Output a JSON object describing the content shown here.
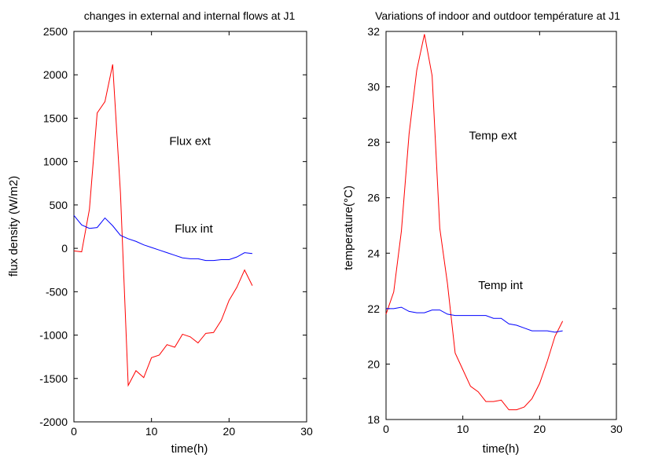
{
  "chart_data": [
    {
      "type": "line",
      "title": "changes in external and internal flows at J1",
      "xlabel": "time(h)",
      "ylabel": "flux density (W/m2)",
      "xlim": [
        0,
        30
      ],
      "ylim": [
        -2000,
        2500
      ],
      "xticks": [
        0,
        10,
        20,
        30
      ],
      "yticks": [
        -2000,
        -1500,
        -1000,
        -500,
        0,
        500,
        1000,
        1500,
        2000,
        2500
      ],
      "grid": false,
      "legend": "none",
      "series": [
        {
          "color": "#ff0000",
          "x": [
            0,
            1,
            2,
            3,
            4,
            5,
            6,
            7,
            8,
            9,
            10,
            11,
            12,
            13,
            14,
            15,
            16,
            17,
            18,
            19,
            20,
            21,
            22,
            23
          ],
          "values": [
            -30,
            -40,
            450,
            1560,
            1690,
            2120,
            640,
            -1580,
            -1410,
            -1490,
            -1260,
            -1230,
            -1110,
            -1140,
            -990,
            -1020,
            -1090,
            -980,
            -970,
            -830,
            -600,
            -450,
            -250,
            -430
          ]
        },
        {
          "color": "#0000ff",
          "x": [
            0,
            1,
            2,
            3,
            4,
            5,
            6,
            7,
            8,
            9,
            10,
            11,
            12,
            13,
            14,
            15,
            16,
            17,
            18,
            19,
            20,
            21,
            22,
            23
          ],
          "values": [
            380,
            270,
            230,
            240,
            350,
            260,
            150,
            110,
            80,
            40,
            10,
            -20,
            -50,
            -80,
            -110,
            -120,
            -120,
            -140,
            -140,
            -130,
            -130,
            -100,
            -50,
            -60
          ]
        }
      ],
      "annotations": [
        {
          "text": "Flux ext",
          "x": 12.3,
          "y": 1190
        },
        {
          "text": "Flux int",
          "x": 13.0,
          "y": 180
        }
      ]
    },
    {
      "type": "line",
      "title": "Variations of indoor and outdoor température at J1",
      "xlabel": "time(h)",
      "ylabel": "temperature(°C)",
      "xlim": [
        0,
        30
      ],
      "ylim": [
        18,
        32
      ],
      "xticks": [
        0,
        10,
        20,
        30
      ],
      "yticks": [
        18,
        20,
        22,
        24,
        26,
        28,
        30,
        32
      ],
      "grid": false,
      "legend": "none",
      "series": [
        {
          "color": "#ff0000",
          "x": [
            0,
            1,
            2,
            3,
            4,
            5,
            6,
            7,
            8,
            9,
            10,
            11,
            12,
            13,
            14,
            15,
            16,
            17,
            18,
            19,
            20,
            21,
            22,
            23
          ],
          "values": [
            21.8,
            22.6,
            24.8,
            28.3,
            30.6,
            31.9,
            30.4,
            24.9,
            22.9,
            20.4,
            19.8,
            19.2,
            19.0,
            18.65,
            18.65,
            18.7,
            18.35,
            18.35,
            18.45,
            18.75,
            19.3,
            20.1,
            21.0,
            21.55
          ]
        },
        {
          "color": "#0000ff",
          "x": [
            0,
            1,
            2,
            3,
            4,
            5,
            6,
            7,
            8,
            9,
            10,
            11,
            12,
            13,
            14,
            15,
            16,
            17,
            18,
            19,
            20,
            21,
            22,
            23
          ],
          "values": [
            22.0,
            22.0,
            22.05,
            21.9,
            21.85,
            21.85,
            21.95,
            21.95,
            21.8,
            21.75,
            21.75,
            21.75,
            21.75,
            21.75,
            21.65,
            21.65,
            21.45,
            21.4,
            21.3,
            21.2,
            21.2,
            21.2,
            21.15,
            21.2
          ]
        }
      ],
      "annotations": [
        {
          "text": "Temp ext",
          "x": 10.8,
          "y": 28.1
        },
        {
          "text": "Temp int",
          "x": 12.0,
          "y": 22.7
        }
      ]
    }
  ]
}
